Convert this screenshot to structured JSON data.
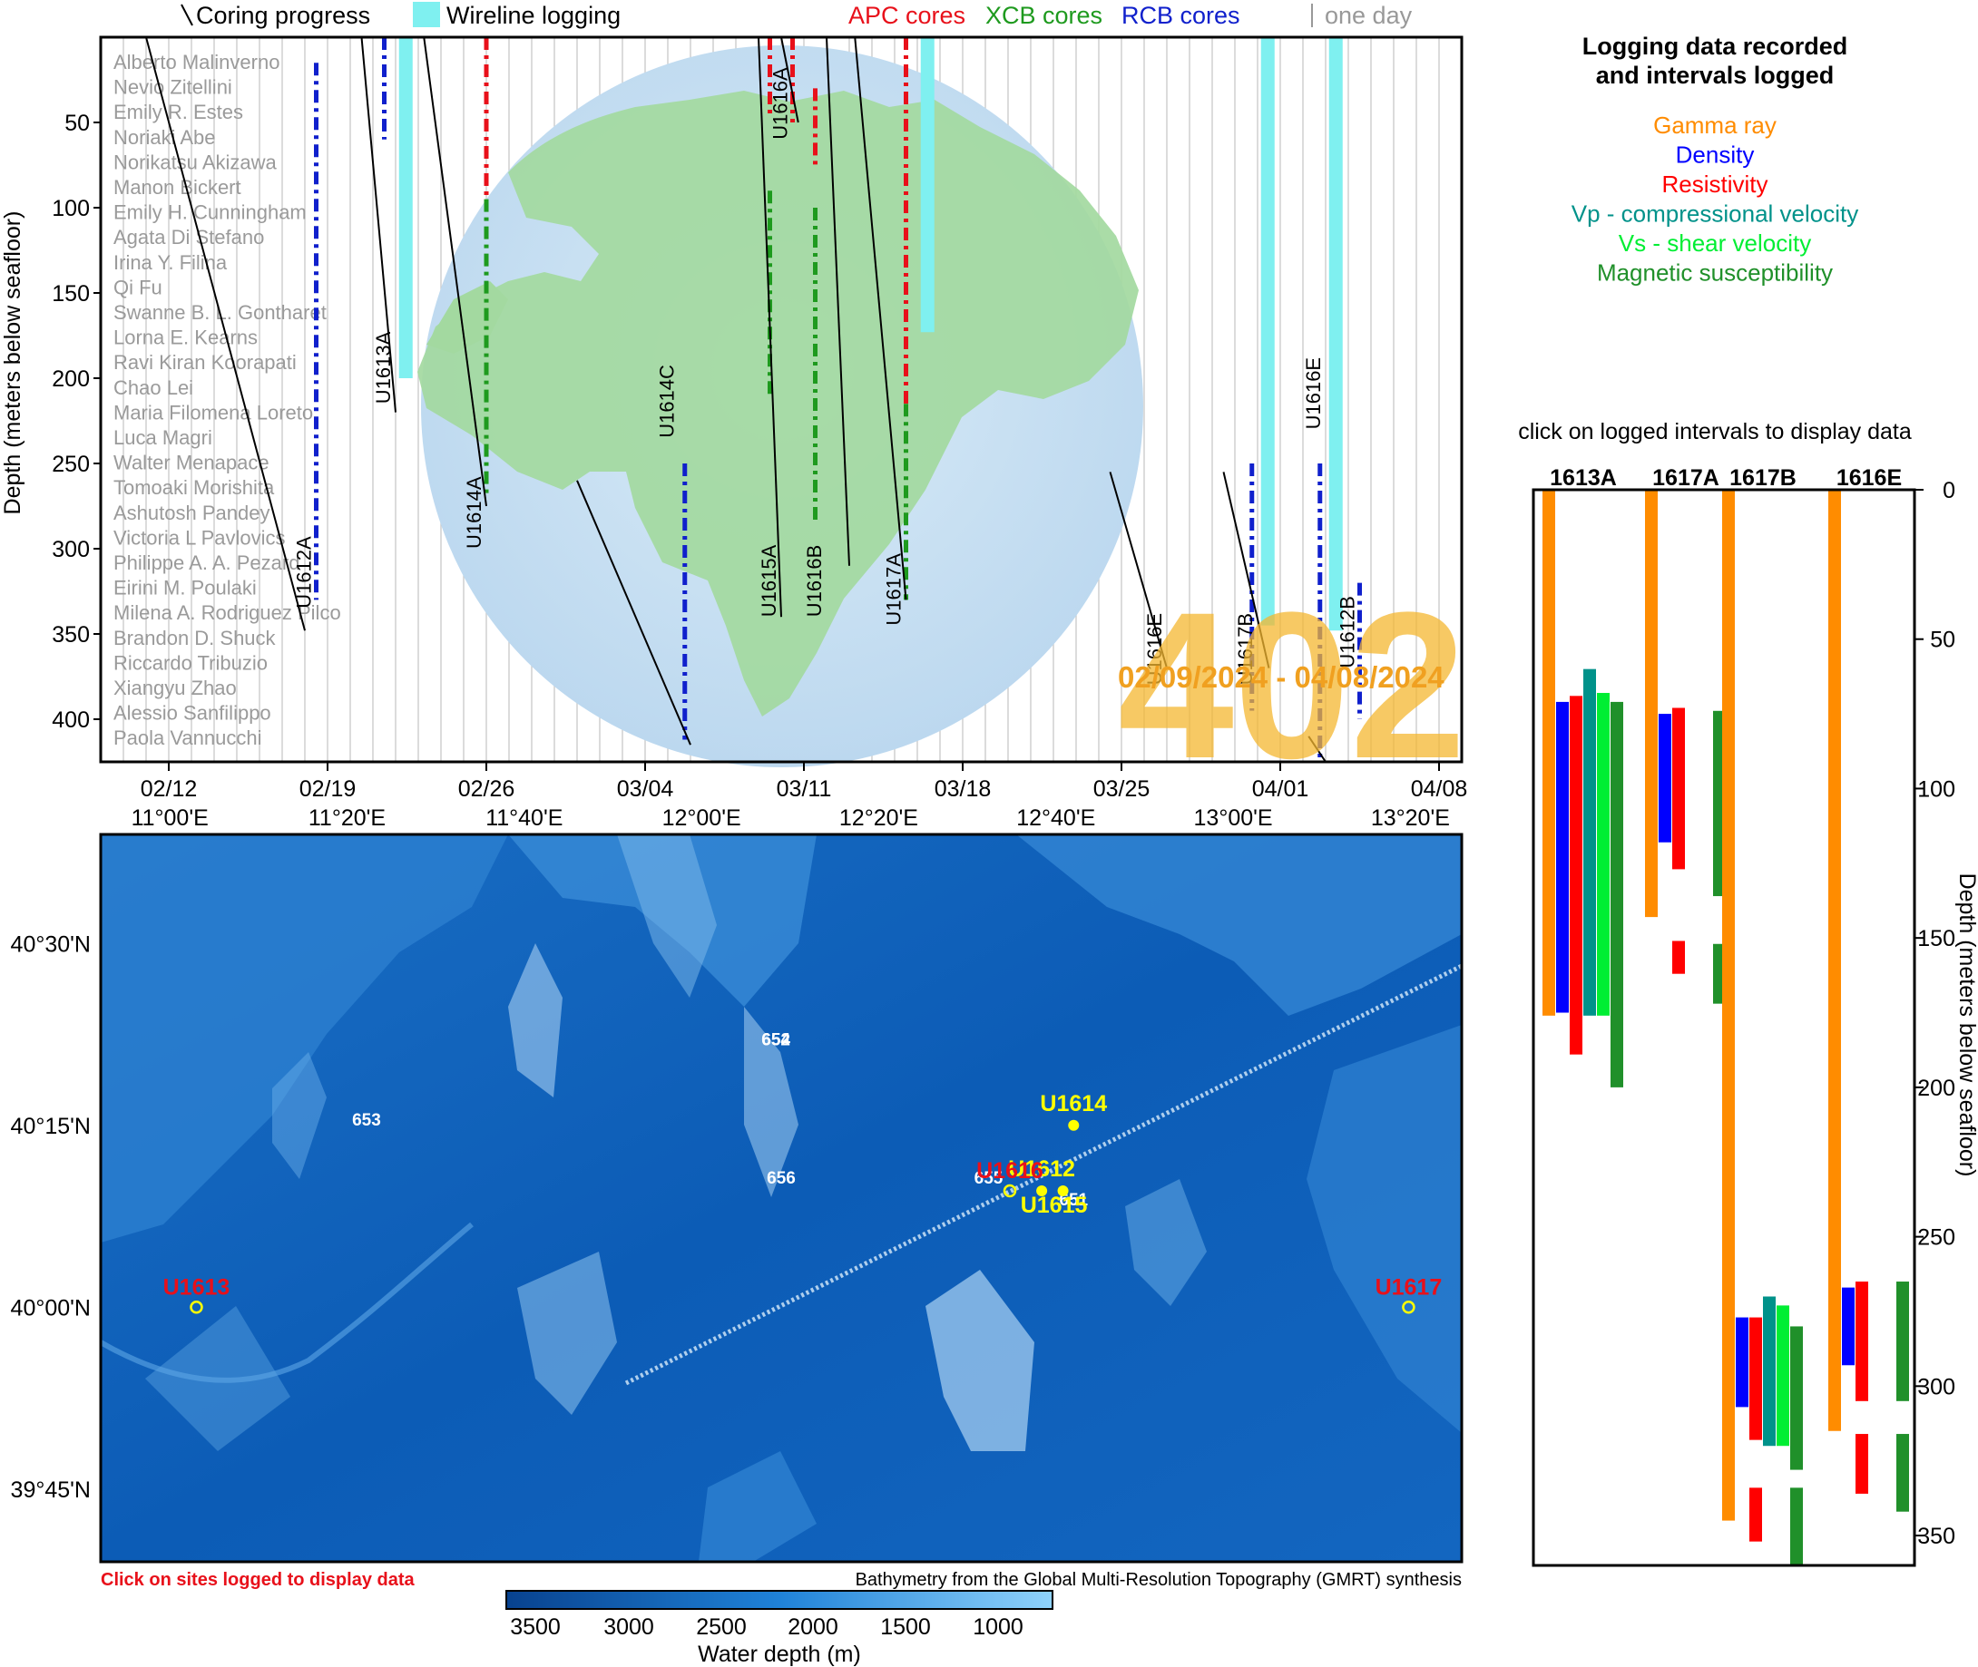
{
  "legend_top": {
    "coring": "Coring progress",
    "wireline": "Wireline logging",
    "apc": "APC cores",
    "xcb": "XCB cores",
    "rcb": "RCB cores",
    "one_day": "one day"
  },
  "colors": {
    "apc": "#e8101a",
    "xcb": "#1e9a1e",
    "rcb": "#1020cc",
    "wireline": "#7ff0f0",
    "expedition": "#f5b731",
    "gamma": "#ff8c00",
    "density": "#0000ff",
    "resistivity": "#ff0000",
    "vp": "#00928a",
    "vs": "#00ee33",
    "mag": "#20902a",
    "ocean_deep": "#0a58b0",
    "ocean_light": "#6fc0f2"
  },
  "expedition": {
    "number": "402",
    "dates": "02/09/2024 - 04/08/2024"
  },
  "participants": [
    "Alberto Malinverno",
    "Nevio Zitellini",
    "Emily R. Estes",
    "Noriaki Abe",
    "Norikatsu Akizawa",
    "Manon Bickert",
    "Emily H. Cunningham",
    "Agata Di Stefano",
    "Irina Y. Filina",
    "Qi Fu",
    "Swanne B. L. Gontharet",
    "Lorna E. Kearns",
    "Ravi Kiran Koorapati",
    "Chao Lei",
    "Maria Filomena Loreto",
    "Luca Magri",
    "Walter Menapace",
    "Tomoaki Morishita",
    "Ashutosh Pandey",
    "Victoria L Pavlovics",
    "Philippe A. A. Pezard",
    "Eirini M. Poulaki",
    "Milena A. Rodriguez Pilco",
    "Brandon D. Shuck",
    "Riccardo Tribuzio",
    "Xiangyu Zhao",
    "Alessio Sanfilippo",
    "Paola Vannucchi"
  ],
  "chart_data": [
    {
      "type": "line",
      "title": "",
      "ylabel": "Depth (meters below seafloor)",
      "ylim": [
        0,
        425
      ],
      "y_reversed": true,
      "yticks": [
        50,
        100,
        150,
        200,
        250,
        300,
        350,
        400
      ],
      "x_dates": [
        "02/12",
        "02/19",
        "02/26",
        "03/04",
        "03/11",
        "03/18",
        "03/25",
        "04/01",
        "04/08"
      ],
      "x_range_days": [
        "2024-02-09",
        "2024-04-09"
      ],
      "grid": "vertical lines one per day",
      "series": [
        {
          "name": "Coring progress",
          "segments": [
            {
              "hole": "U1612A",
              "pts": [
                [
                  "2024-02-11T00",
                  "0"
                ],
                [
                  "2024-02-18T00",
                  "348"
                ]
              ]
            },
            {
              "hole": "U1613A",
              "pts": [
                [
                  "2024-02-20T12",
                  "0"
                ],
                [
                  "2024-02-22T00",
                  "220"
                ]
              ]
            },
            {
              "hole": "U1614A",
              "pts": [
                [
                  "2024-02-23T06",
                  "0"
                ],
                [
                  "2024-02-26T00",
                  "275"
                ]
              ]
            },
            {
              "hole": "U1614C",
              "pts": [
                [
                  "2024-03-01T00",
                  "260"
                ],
                [
                  "2024-03-06T00",
                  "415"
                ]
              ]
            },
            {
              "hole": "U1615A",
              "pts": [
                [
                  "2024-03-09T00",
                  "0"
                ],
                [
                  "2024-03-10T00",
                  "340"
                ]
              ]
            },
            {
              "hole": "U1616A",
              "pts": [
                [
                  "2024-03-10T00",
                  "0"
                ],
                [
                  "2024-03-10T18",
                  "50"
                ]
              ]
            },
            {
              "hole": "U1616B",
              "pts": [
                [
                  "2024-03-12T00",
                  "0"
                ],
                [
                  "2024-03-13T00",
                  "310"
                ]
              ]
            },
            {
              "hole": "U1617A",
              "pts": [
                [
                  "2024-03-13T06",
                  "0"
                ],
                [
                  "2024-03-15T12",
                  "330"
                ]
              ]
            },
            {
              "hole": "U1616E",
              "pts": [
                [
                  "2024-03-24T12",
                  "255"
                ],
                [
                  "2024-03-27T00",
                  "370"
                ]
              ]
            },
            {
              "hole": "U1617B",
              "pts": [
                [
                  "2024-03-29T12",
                  "255"
                ],
                [
                  "2024-03-31T12",
                  "370"
                ]
              ]
            },
            {
              "hole": "U1612B",
              "pts": [
                [
                  "2024-04-02T06",
                  "410"
                ],
                [
                  "2024-04-03T00",
                  "425"
                ]
              ]
            }
          ]
        },
        {
          "name": "Wireline logging",
          "bars": [
            {
              "hole": "U1613A",
              "day": "2024-02-22",
              "top": 0,
              "bottom": 200
            },
            {
              "hole": "U1617A",
              "day": "2024-03-16",
              "top": 0,
              "bottom": 173
            },
            {
              "hole": "U1617B",
              "day": "2024-03-31",
              "top": 0,
              "bottom": 345
            },
            {
              "hole": "U1616E",
              "day": "2024-04-03",
              "top": 0,
              "bottom": 348
            }
          ]
        }
      ],
      "hole_labels": [
        "U1612A",
        "U1613A",
        "U1614A",
        "U1614C",
        "U1615A",
        "U1616A",
        "U1616B",
        "U1617A",
        "U1616E",
        "U1617B",
        "U1616E",
        "U1612B"
      ]
    },
    {
      "type": "bar",
      "title": "Logging data recorded and intervals logged",
      "ylabel": "Depth (meters below seafloor)",
      "ylim": [
        0,
        360
      ],
      "y_reversed": true,
      "yticks": [
        0,
        50,
        100,
        150,
        200,
        250,
        300,
        350
      ],
      "instruction": "click on logged intervals to display data",
      "categories": [
        "1613A",
        "1617A",
        "1617B",
        "1616E"
      ],
      "series": [
        {
          "name": "Gamma ray",
          "intervals": [
            [
              [
                0,
                176
              ]
            ],
            [
              [
                0,
                143
              ]
            ],
            [
              [
                0,
                345
              ]
            ],
            [
              [
                0,
                315
              ]
            ]
          ]
        },
        {
          "name": "Density",
          "intervals": [
            [
              [
                71,
                175
              ]
            ],
            [
              [
                75,
                118
              ]
            ],
            [
              [
                277,
                307
              ]
            ],
            [
              [
                267,
                293
              ]
            ]
          ]
        },
        {
          "name": "Resistivity",
          "intervals": [
            [
              [
                69,
                189
              ]
            ],
            [
              [
                73,
                127
              ],
              [
                151,
                162
              ]
            ],
            [
              [
                277,
                318
              ],
              [
                334,
                352
              ]
            ],
            [
              [
                265,
                305
              ],
              [
                316,
                336
              ]
            ]
          ]
        },
        {
          "name": "Vp - compressional velocity",
          "intervals": [
            [
              [
                60,
                176
              ]
            ],
            [],
            [
              [
                270,
                320
              ]
            ],
            []
          ]
        },
        {
          "name": "Vs - shear velocity",
          "intervals": [
            [
              [
                68,
                176
              ]
            ],
            [],
            [
              [
                273,
                320
              ]
            ],
            []
          ]
        },
        {
          "name": "Magnetic susceptibility",
          "intervals": [
            [
              [
                71,
                200
              ]
            ],
            [
              [
                74,
                136
              ],
              [
                152,
                172
              ]
            ],
            [
              [
                280,
                328
              ],
              [
                334,
                360
              ]
            ],
            [
              [
                265,
                305
              ],
              [
                316,
                342
              ]
            ]
          ]
        }
      ]
    }
  ],
  "map": {
    "lon_ticks": [
      "11°00'E",
      "11°20'E",
      "11°40'E",
      "12°00'E",
      "12°20'E",
      "12°40'E",
      "13°00'E",
      "13°20'E"
    ],
    "lat_ticks": [
      "40°30'N",
      "40°15'N",
      "40°00'N",
      "39°45'N"
    ],
    "footer_left": "Click on sites logged to display data",
    "footer_right": "Bathymetry from the Global Multi-Resolution Topography (GMRT) synthesis",
    "colorbar_ticks": [
      "3500",
      "3000",
      "2500",
      "2000",
      "1500",
      "1000"
    ],
    "colorbar_label": "Water depth (m)",
    "sites_logged": [
      {
        "label": "U1613",
        "lon": 11.05,
        "lat": 40.0
      },
      {
        "label": "U1617",
        "lon": 13.33,
        "lat": 40.0
      },
      {
        "label": "U1616",
        "lon": 12.58,
        "lat": 40.16
      }
    ],
    "sites_other": [
      {
        "label": "U1614",
        "lon": 12.7,
        "lat": 40.25
      },
      {
        "label": "U1612",
        "lon": 12.64,
        "lat": 40.16
      },
      {
        "label": "U1615",
        "lon": 12.68,
        "lat": 40.16
      }
    ],
    "odp_sites": [
      {
        "label": "653",
        "lon": 11.37,
        "lat": 40.25
      },
      {
        "label": "652",
        "lon": 12.14,
        "lat": 40.36
      },
      {
        "label": "654",
        "lon": 12.14,
        "lat": 40.36
      },
      {
        "label": "656",
        "lon": 12.15,
        "lat": 40.17
      },
      {
        "label": "655",
        "lon": 12.54,
        "lat": 40.17
      },
      {
        "label": "651",
        "lon": 12.7,
        "lat": 40.14
      }
    ]
  }
}
